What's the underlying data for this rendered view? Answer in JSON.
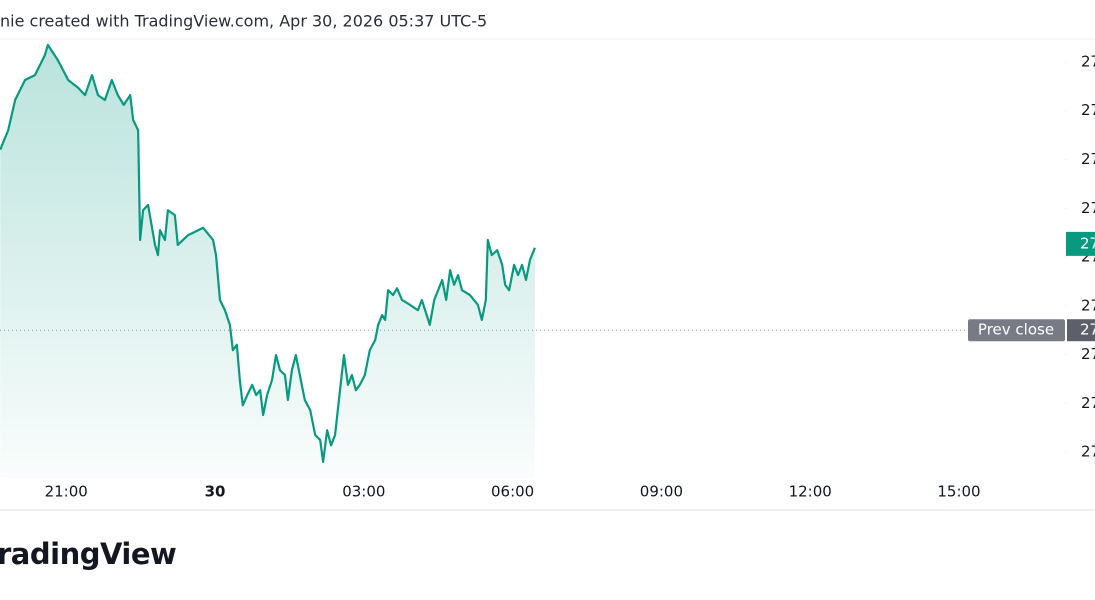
{
  "header": {
    "text": "nie created with TradingView.com, Apr 30, 2026 05:37 UTC-5"
  },
  "footer": {
    "logo": "radingView"
  },
  "chart_data": {
    "type": "area",
    "color": "#089981",
    "grid": false,
    "xlim": [
      -4.335,
      17.137
    ],
    "ylim": [
      26.947,
      27.845
    ],
    "xticks": [
      {
        "value": -3,
        "label": "21:00"
      },
      {
        "value": 0,
        "label": "30"
      },
      {
        "value": 3,
        "label": "03:00"
      },
      {
        "value": 6,
        "label": "06:00"
      },
      {
        "value": 9,
        "label": "09:00"
      },
      {
        "value": 12,
        "label": "12:00"
      },
      {
        "value": 15,
        "label": "15:00"
      }
    ],
    "yticks": [
      {
        "value": 27.8,
        "label": "27"
      },
      {
        "value": 27.7,
        "label": "27"
      },
      {
        "value": 27.6,
        "label": "27"
      },
      {
        "value": 27.5,
        "label": "27"
      },
      {
        "value": 27.4,
        "label": "27"
      },
      {
        "value": 27.3,
        "label": "27"
      },
      {
        "value": 27.2,
        "label": "27"
      },
      {
        "value": 27.1,
        "label": "27"
      },
      {
        "value": 27.0,
        "label": "27"
      }
    ],
    "last_price": {
      "value": 27.427,
      "label": "27"
    },
    "prev_close": {
      "name": "Prev close",
      "value": 27.25,
      "label": "27"
    },
    "x": [
      -4.33,
      -4.17,
      -4.03,
      -3.83,
      -3.63,
      -3.43,
      -3.37,
      -3.17,
      -2.96,
      -2.76,
      -2.62,
      -2.48,
      -2.36,
      -2.22,
      -2.08,
      -1.96,
      -1.84,
      -1.71,
      -1.65,
      -1.55,
      -1.51,
      -1.45,
      -1.35,
      -1.21,
      -1.15,
      -1.11,
      -1.01,
      -0.95,
      -0.81,
      -0.75,
      -0.54,
      -0.34,
      -0.24,
      -0.04,
      0.02,
      0.1,
      0.2,
      0.3,
      0.36,
      0.44,
      0.5,
      0.56,
      0.65,
      0.75,
      0.83,
      0.91,
      0.97,
      1.05,
      1.15,
      1.23,
      1.31,
      1.41,
      1.47,
      1.55,
      1.63,
      1.71,
      1.81,
      1.92,
      2.02,
      2.12,
      2.18,
      2.26,
      2.34,
      2.42,
      2.52,
      2.6,
      2.68,
      2.76,
      2.84,
      2.92,
      3.02,
      3.12,
      3.23,
      3.29,
      3.37,
      3.43,
      3.49,
      3.59,
      3.67,
      3.77,
      3.93,
      4.09,
      4.17,
      4.33,
      4.42,
      4.58,
      4.66,
      4.74,
      4.82,
      4.9,
      4.98,
      5.14,
      5.3,
      5.38,
      5.46,
      5.5,
      5.58,
      5.69,
      5.79,
      5.85,
      5.93,
      6.03,
      6.11,
      6.19,
      6.27,
      6.35,
      6.45
    ],
    "values": [
      27.62,
      27.66,
      27.722,
      27.763,
      27.773,
      27.814,
      27.835,
      27.804,
      27.763,
      27.747,
      27.732,
      27.773,
      27.732,
      27.722,
      27.763,
      27.732,
      27.712,
      27.732,
      27.681,
      27.66,
      27.435,
      27.496,
      27.507,
      27.425,
      27.404,
      27.455,
      27.435,
      27.496,
      27.486,
      27.425,
      27.445,
      27.455,
      27.46,
      27.435,
      27.404,
      27.312,
      27.291,
      27.261,
      27.209,
      27.22,
      27.148,
      27.096,
      27.117,
      27.138,
      27.117,
      27.127,
      27.076,
      27.117,
      27.148,
      27.199,
      27.168,
      27.158,
      27.107,
      27.168,
      27.199,
      27.158,
      27.107,
      27.086,
      27.035,
      27.025,
      26.98,
      27.045,
      27.014,
      27.035,
      27.127,
      27.199,
      27.138,
      27.158,
      27.127,
      27.138,
      27.158,
      27.209,
      27.23,
      27.261,
      27.281,
      27.271,
      27.332,
      27.322,
      27.336,
      27.312,
      27.302,
      27.291,
      27.312,
      27.261,
      27.312,
      27.353,
      27.312,
      27.373,
      27.343,
      27.363,
      27.332,
      27.322,
      27.302,
      27.271,
      27.312,
      27.435,
      27.404,
      27.414,
      27.384,
      27.343,
      27.332,
      27.384,
      27.363,
      27.384,
      27.353,
      27.394,
      27.419
    ]
  }
}
